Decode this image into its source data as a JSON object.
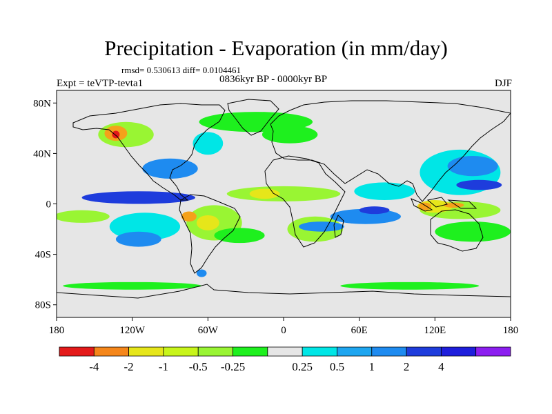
{
  "title": "Precipitation - Evaporation (in mm/day)",
  "stats_text": "rmsd= 0.530613 diff= 0.0104461",
  "period_text": "0836kyr BP - 0000kyr BP",
  "experiment_text": "Expt = teVTP-tevta1",
  "season_text": "DJF",
  "map": {
    "projection": "cylindrical equidistant",
    "lon_range": [
      -180,
      180
    ],
    "lat_range": [
      -90,
      90
    ],
    "ocean_land_background": "#e6e6e6",
    "x_tick_labels": [
      "180",
      "120W",
      "60W",
      "0",
      "60E",
      "120E",
      "180"
    ],
    "y_tick_labels": [
      "80N",
      "40N",
      "0",
      "40S",
      "80S"
    ],
    "anomaly_regions": [
      {
        "lon": -125,
        "lat": 55,
        "rx": 22,
        "ry": 10,
        "level": "-0.5",
        "color": "#99f533"
      },
      {
        "lon": -133,
        "lat": 56,
        "rx": 9,
        "ry": 6,
        "level": "-2",
        "color": "#f5a11a"
      },
      {
        "lon": -133,
        "lat": 55,
        "rx": 3,
        "ry": 3,
        "level": "-4",
        "color": "#e41a1a"
      },
      {
        "lon": -90,
        "lat": 28,
        "rx": 22,
        "ry": 8,
        "level": "1",
        "color": "#1e8bf0"
      },
      {
        "lon": -60,
        "lat": 48,
        "rx": 12,
        "ry": 9,
        "level": "0.5",
        "color": "#00e6e6"
      },
      {
        "lon": -22,
        "lat": 65,
        "rx": 45,
        "ry": 8,
        "level": "-0.25",
        "color": "#1ef01e"
      },
      {
        "lon": 5,
        "lat": 55,
        "rx": 22,
        "ry": 7,
        "level": "-0.25",
        "color": "#1ef01e"
      },
      {
        "lon": 0,
        "lat": 8,
        "rx": 45,
        "ry": 6,
        "level": "-0.5",
        "color": "#99f533"
      },
      {
        "lon": -15,
        "lat": 8,
        "rx": 12,
        "ry": 4,
        "level": "-1",
        "color": "#e6e61a"
      },
      {
        "lon": -115,
        "lat": 5,
        "rx": 45,
        "ry": 5,
        "level": "2",
        "color": "#1e3cdc"
      },
      {
        "lon": -160,
        "lat": -10,
        "rx": 22,
        "ry": 5,
        "level": "-0.5",
        "color": "#99f533"
      },
      {
        "lon": -110,
        "lat": -18,
        "rx": 28,
        "ry": 11,
        "level": "0.5",
        "color": "#00e6e6"
      },
      {
        "lon": -115,
        "lat": -28,
        "rx": 18,
        "ry": 6,
        "level": "1",
        "color": "#1e8bf0"
      },
      {
        "lon": -55,
        "lat": -15,
        "rx": 22,
        "ry": 14,
        "level": "-0.5",
        "color": "#99f533"
      },
      {
        "lon": -60,
        "lat": -15,
        "rx": 9,
        "ry": 6,
        "level": "-1",
        "color": "#e6e61a"
      },
      {
        "lon": -75,
        "lat": -10,
        "rx": 6,
        "ry": 4,
        "level": "-2",
        "color": "#f5a11a"
      },
      {
        "lon": -35,
        "lat": -25,
        "rx": 20,
        "ry": 6,
        "level": "-0.25",
        "color": "#1ef01e"
      },
      {
        "lon": 25,
        "lat": -20,
        "rx": 22,
        "ry": 10,
        "level": "-0.5",
        "color": "#99f533"
      },
      {
        "lon": 30,
        "lat": -18,
        "rx": 18,
        "ry": 4,
        "level": "1",
        "color": "#1e8bf0"
      },
      {
        "lon": 65,
        "lat": -10,
        "rx": 28,
        "ry": 6,
        "level": "1",
        "color": "#1e8bf0"
      },
      {
        "lon": 72,
        "lat": -5,
        "rx": 12,
        "ry": 3,
        "level": "2",
        "color": "#1e3cdc"
      },
      {
        "lon": 80,
        "lat": 10,
        "rx": 24,
        "ry": 7,
        "level": "0.5",
        "color": "#00e6e6"
      },
      {
        "lon": 140,
        "lat": 25,
        "rx": 32,
        "ry": 18,
        "level": "0.5",
        "color": "#00e6e6"
      },
      {
        "lon": 150,
        "lat": 30,
        "rx": 20,
        "ry": 8,
        "level": "1",
        "color": "#1e8bf0"
      },
      {
        "lon": 155,
        "lat": 15,
        "rx": 18,
        "ry": 4,
        "level": "2",
        "color": "#1e3cdc"
      },
      {
        "lon": 140,
        "lat": -5,
        "rx": 32,
        "ry": 7,
        "level": "-0.5",
        "color": "#99f533"
      },
      {
        "lon": 120,
        "lat": -2,
        "rx": 14,
        "ry": 5,
        "level": "-1",
        "color": "#e6e61a"
      },
      {
        "lon": 112,
        "lat": -2,
        "rx": 5,
        "ry": 3,
        "level": "-2",
        "color": "#f5a11a"
      },
      {
        "lon": 135,
        "lat": -1,
        "rx": 8,
        "ry": 2,
        "level": "-2",
        "color": "#f5a11a"
      },
      {
        "lon": 150,
        "lat": -22,
        "rx": 30,
        "ry": 8,
        "level": "-0.25",
        "color": "#1ef01e"
      },
      {
        "lon": -120,
        "lat": -65,
        "rx": 55,
        "ry": 3,
        "level": "-0.25",
        "color": "#1ef01e"
      },
      {
        "lon": 100,
        "lat": -65,
        "rx": 55,
        "ry": 3,
        "level": "-0.25",
        "color": "#1ef01e"
      },
      {
        "lon": -65,
        "lat": -55,
        "rx": 4,
        "ry": 3,
        "level": "1",
        "color": "#1e8bf0"
      }
    ]
  },
  "colorbar": {
    "colors": [
      "#e41a1a",
      "#f5861a",
      "#e6e61a",
      "#c8f51a",
      "#99f533",
      "#1ef01e",
      "#e6e6e6",
      "#00e6e6",
      "#1ea6f0",
      "#1e8bf0",
      "#1e3cdc",
      "#1e1edc",
      "#8c1ef0"
    ],
    "labels": [
      "-4",
      "-2",
      "-1",
      "-0.5",
      "-0.25",
      "0.25",
      "0.5",
      "1",
      "2",
      "4"
    ]
  }
}
